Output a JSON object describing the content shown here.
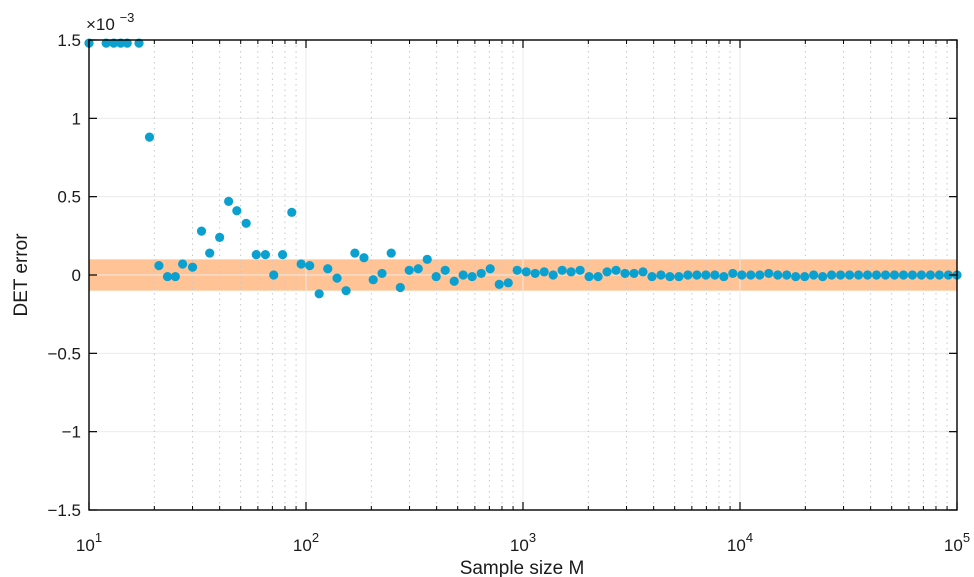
{
  "chart_data": {
    "type": "scatter",
    "title": "",
    "xlabel": "Sample size M",
    "ylabel": "DET error",
    "x_scale": "log",
    "xlim": [
      10,
      100000
    ],
    "ylim": [
      -0.0015,
      0.0015
    ],
    "y_exponent_label": "×10",
    "y_exponent_power": "−3",
    "x_ticks": [
      {
        "base": "10",
        "exp": "1"
      },
      {
        "base": "10",
        "exp": "2"
      },
      {
        "base": "10",
        "exp": "3"
      },
      {
        "base": "10",
        "exp": "4"
      },
      {
        "base": "10",
        "exp": "5"
      }
    ],
    "y_ticks": [
      {
        "value": -0.0015,
        "label": "−1.5"
      },
      {
        "value": -0.001,
        "label": "−1"
      },
      {
        "value": -0.0005,
        "label": "−0.5"
      },
      {
        "value": 0,
        "label": "0"
      },
      {
        "value": 0.0005,
        "label": "0.5"
      },
      {
        "value": 0.001,
        "label": "1"
      },
      {
        "value": 0.0015,
        "label": "1.5"
      }
    ],
    "band": {
      "y_min": -0.0001,
      "y_max": 0.0001,
      "color": "#ffc396"
    },
    "grid": "vertical minor dotted, horizontal light",
    "marker_color": "#0aa0cf",
    "series": [
      {
        "x": [
          10,
          12,
          13,
          14,
          15,
          17,
          19,
          21,
          23,
          25,
          27,
          30,
          33,
          36,
          40,
          44,
          48,
          53,
          59,
          65,
          71,
          78,
          86,
          95,
          104,
          115,
          126,
          139,
          153,
          168,
          185,
          204,
          224,
          247,
          272,
          299,
          329,
          362,
          398,
          438,
          482,
          530,
          583,
          642,
          706,
          777,
          855,
          940,
          1035,
          1138,
          1252,
          1377,
          1515,
          1666,
          1833,
          2016,
          2218,
          2440,
          2684,
          2952,
          3247,
          3572,
          3929,
          4322,
          4754,
          5230,
          5753,
          6328,
          6961,
          7657,
          8423,
          9265,
          10192,
          11211,
          12332,
          13565,
          14922,
          16414,
          18055,
          19861,
          21847,
          24032,
          26435,
          29078,
          31986,
          35185,
          38703,
          42574,
          46831,
          51514,
          56666,
          62332,
          68565,
          75422,
          82964,
          91261,
          100000
        ],
        "y": [
          0.00148,
          0.00148,
          0.00148,
          0.00148,
          0.00148,
          0.00148,
          0.00088,
          6e-05,
          -1e-05,
          -1e-05,
          7e-05,
          5e-05,
          0.00028,
          0.00014,
          0.00024,
          0.00047,
          0.00041,
          0.00033,
          0.00013,
          0.00013,
          0.0,
          0.00013,
          0.0004,
          7e-05,
          6e-05,
          -0.00012,
          4e-05,
          -2e-05,
          -0.0001,
          0.00014,
          0.00011,
          -3e-05,
          1e-05,
          0.00014,
          -8e-05,
          3e-05,
          4e-05,
          0.0001,
          -1e-05,
          3e-05,
          -4e-05,
          0.0,
          -1e-05,
          1e-05,
          4e-05,
          -6e-05,
          -5e-05,
          3e-05,
          2e-05,
          1e-05,
          2e-05,
          0.0,
          3e-05,
          2e-05,
          3e-05,
          -1e-05,
          -1e-05,
          2e-05,
          3e-05,
          1e-05,
          1e-05,
          2e-05,
          -1e-05,
          0.0,
          -1e-05,
          -1e-05,
          0.0,
          0.0,
          0.0,
          0.0,
          -1e-05,
          1e-05,
          0.0,
          0.0,
          0.0,
          1e-05,
          0.0,
          0.0,
          -1e-05,
          -1e-05,
          0.0,
          -1e-05,
          0.0,
          0.0,
          0.0,
          0.0,
          0.0,
          0.0,
          0.0,
          0.0,
          0.0,
          0.0,
          0.0,
          0.0,
          0.0,
          0.0,
          0.0
        ]
      }
    ]
  }
}
